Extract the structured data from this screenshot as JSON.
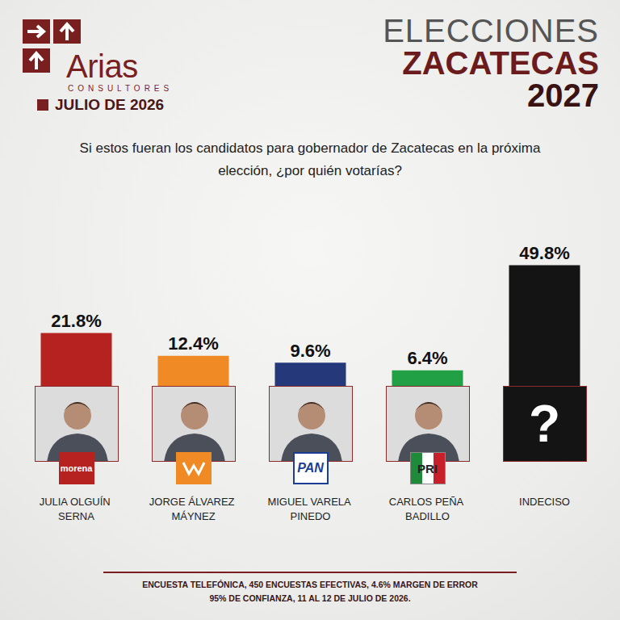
{
  "header": {
    "brand": "Arias",
    "brand_sub": "CONSULTORES",
    "date": "JULIO DE 2026",
    "title_lines": [
      "ELECCIONES",
      "ZACATECAS",
      "2027"
    ]
  },
  "chart_data": {
    "type": "bar",
    "title": "Si estos fueran los candidatos para gobernador de Zacatecas en la próxima elección, ¿por quién votarías?",
    "categories": [
      "JULIA OLGUÍN SERNA",
      "JORGE ÁLVAREZ MÁYNEZ",
      "MIGUEL VARELA PINEDO",
      "CARLOS PEÑA BADILLO",
      "INDECISO"
    ],
    "values": [
      21.8,
      12.4,
      9.6,
      6.4,
      49.8
    ],
    "value_labels": [
      "21.8%",
      "12.4%",
      "9.6%",
      "6.4%",
      "49.8%"
    ],
    "colors": [
      "#b5221f",
      "#f08a24",
      "#25397a",
      "#22a045",
      "#141414"
    ],
    "ylim": [
      0,
      60
    ],
    "data_labels": true,
    "tick_labels": false,
    "grid": false
  },
  "portraits": {
    "party_labels": [
      "morena",
      null,
      "PAN",
      "PRI",
      null
    ],
    "undecided_symbol": "?"
  },
  "footnote": [
    "ENCUESTA TELEFÓNICA, 450 ENCUESTAS EFECTIVAS, 4.6%  MARGEN DE ERROR",
    "95% DE CONFIANZA, 11 AL 12 DE JULIO DE 2026."
  ]
}
